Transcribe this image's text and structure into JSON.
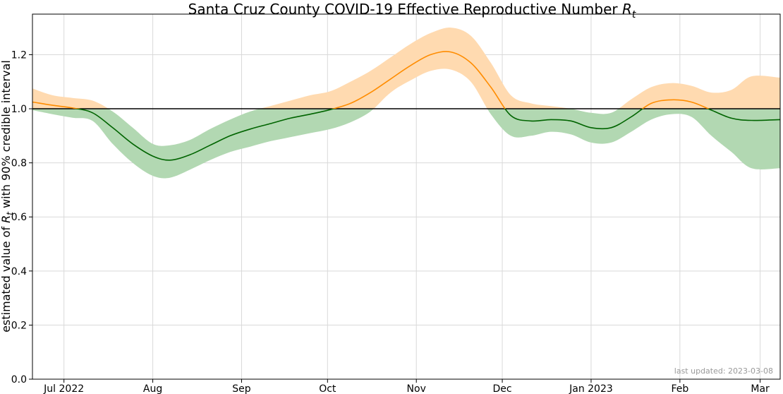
{
  "chart_data": {
    "type": "line",
    "title": "Santa Cruz County COVID-19 Effective Reproductive Number ",
    "title_symbol": "R",
    "title_subscript": "t",
    "ylabel_prefix": "estimated value of ",
    "ylabel_symbol": "R",
    "ylabel_subscript": "t",
    "ylabel_suffix": " with 90% credible interval",
    "xlabel": "",
    "footnote": "last updated: 2023-03-08",
    "x_range": [
      "2022-06-20",
      "2023-03-08"
    ],
    "ylim": [
      0.0,
      1.35
    ],
    "y_ticks": [
      0.0,
      0.2,
      0.4,
      0.6,
      0.8,
      1.0,
      1.2
    ],
    "y_tick_labels": [
      "0.0",
      "0.2",
      "0.4",
      "0.6",
      "0.8",
      "1.0",
      "1.2"
    ],
    "x_ticks": [
      "2022-07-01",
      "2022-08-01",
      "2022-09-01",
      "2022-10-01",
      "2022-11-01",
      "2022-12-01",
      "2023-01-01",
      "2023-02-01",
      "2023-03-01"
    ],
    "x_tick_labels": [
      "Jul 2022",
      "Aug",
      "Sep",
      "Oct",
      "Nov",
      "Dec",
      "Jan 2023",
      "Feb",
      "Mar"
    ],
    "grid": true,
    "reference_line": 1.0,
    "colors": {
      "above_line": "#ff8c00",
      "above_band": "#ffdab0",
      "below_line": "#006400",
      "below_band": "#b2d8b2",
      "reference": "#000000",
      "grid": "#d9d9d9"
    },
    "series": [
      {
        "x": [
          "2022-06-20",
          "2022-06-27",
          "2022-07-04",
          "2022-07-11",
          "2022-07-18",
          "2022-07-25",
          "2022-08-01",
          "2022-08-07",
          "2022-08-14",
          "2022-08-21",
          "2022-08-28",
          "2022-09-04",
          "2022-09-11",
          "2022-09-18",
          "2022-09-25",
          "2022-10-02",
          "2022-10-09",
          "2022-10-16",
          "2022-10-23",
          "2022-10-30",
          "2022-11-06",
          "2022-11-13",
          "2022-11-20",
          "2022-11-27",
          "2022-12-04",
          "2022-12-11",
          "2022-12-18",
          "2022-12-25",
          "2023-01-01",
          "2023-01-08",
          "2023-01-15",
          "2023-01-22",
          "2023-01-29",
          "2023-02-05",
          "2023-02-12",
          "2023-02-19",
          "2023-02-26",
          "2023-03-08"
        ],
        "y": [
          1.025,
          1.013,
          1.003,
          0.985,
          0.93,
          0.87,
          0.825,
          0.81,
          0.83,
          0.865,
          0.9,
          0.925,
          0.945,
          0.965,
          0.98,
          0.997,
          1.02,
          1.06,
          1.11,
          1.16,
          1.2,
          1.21,
          1.17,
          1.08,
          0.975,
          0.955,
          0.96,
          0.955,
          0.93,
          0.93,
          0.97,
          1.02,
          1.033,
          1.025,
          0.995,
          0.965,
          0.957,
          0.96
        ],
        "lower": [
          0.995,
          0.98,
          0.967,
          0.955,
          0.87,
          0.8,
          0.752,
          0.745,
          0.775,
          0.81,
          0.84,
          0.86,
          0.88,
          0.895,
          0.91,
          0.925,
          0.95,
          0.99,
          1.06,
          1.105,
          1.14,
          1.145,
          1.1,
          0.98,
          0.9,
          0.9,
          0.915,
          0.905,
          0.875,
          0.875,
          0.915,
          0.96,
          0.98,
          0.97,
          0.9,
          0.84,
          0.78,
          0.78
        ],
        "upper": [
          1.075,
          1.05,
          1.04,
          1.03,
          0.99,
          0.93,
          0.87,
          0.865,
          0.885,
          0.925,
          0.96,
          0.99,
          1.01,
          1.03,
          1.05,
          1.065,
          1.1,
          1.14,
          1.19,
          1.24,
          1.28,
          1.3,
          1.27,
          1.17,
          1.05,
          1.02,
          1.01,
          1.0,
          0.985,
          0.985,
          1.035,
          1.08,
          1.095,
          1.085,
          1.06,
          1.07,
          1.12,
          1.115
        ]
      }
    ]
  }
}
